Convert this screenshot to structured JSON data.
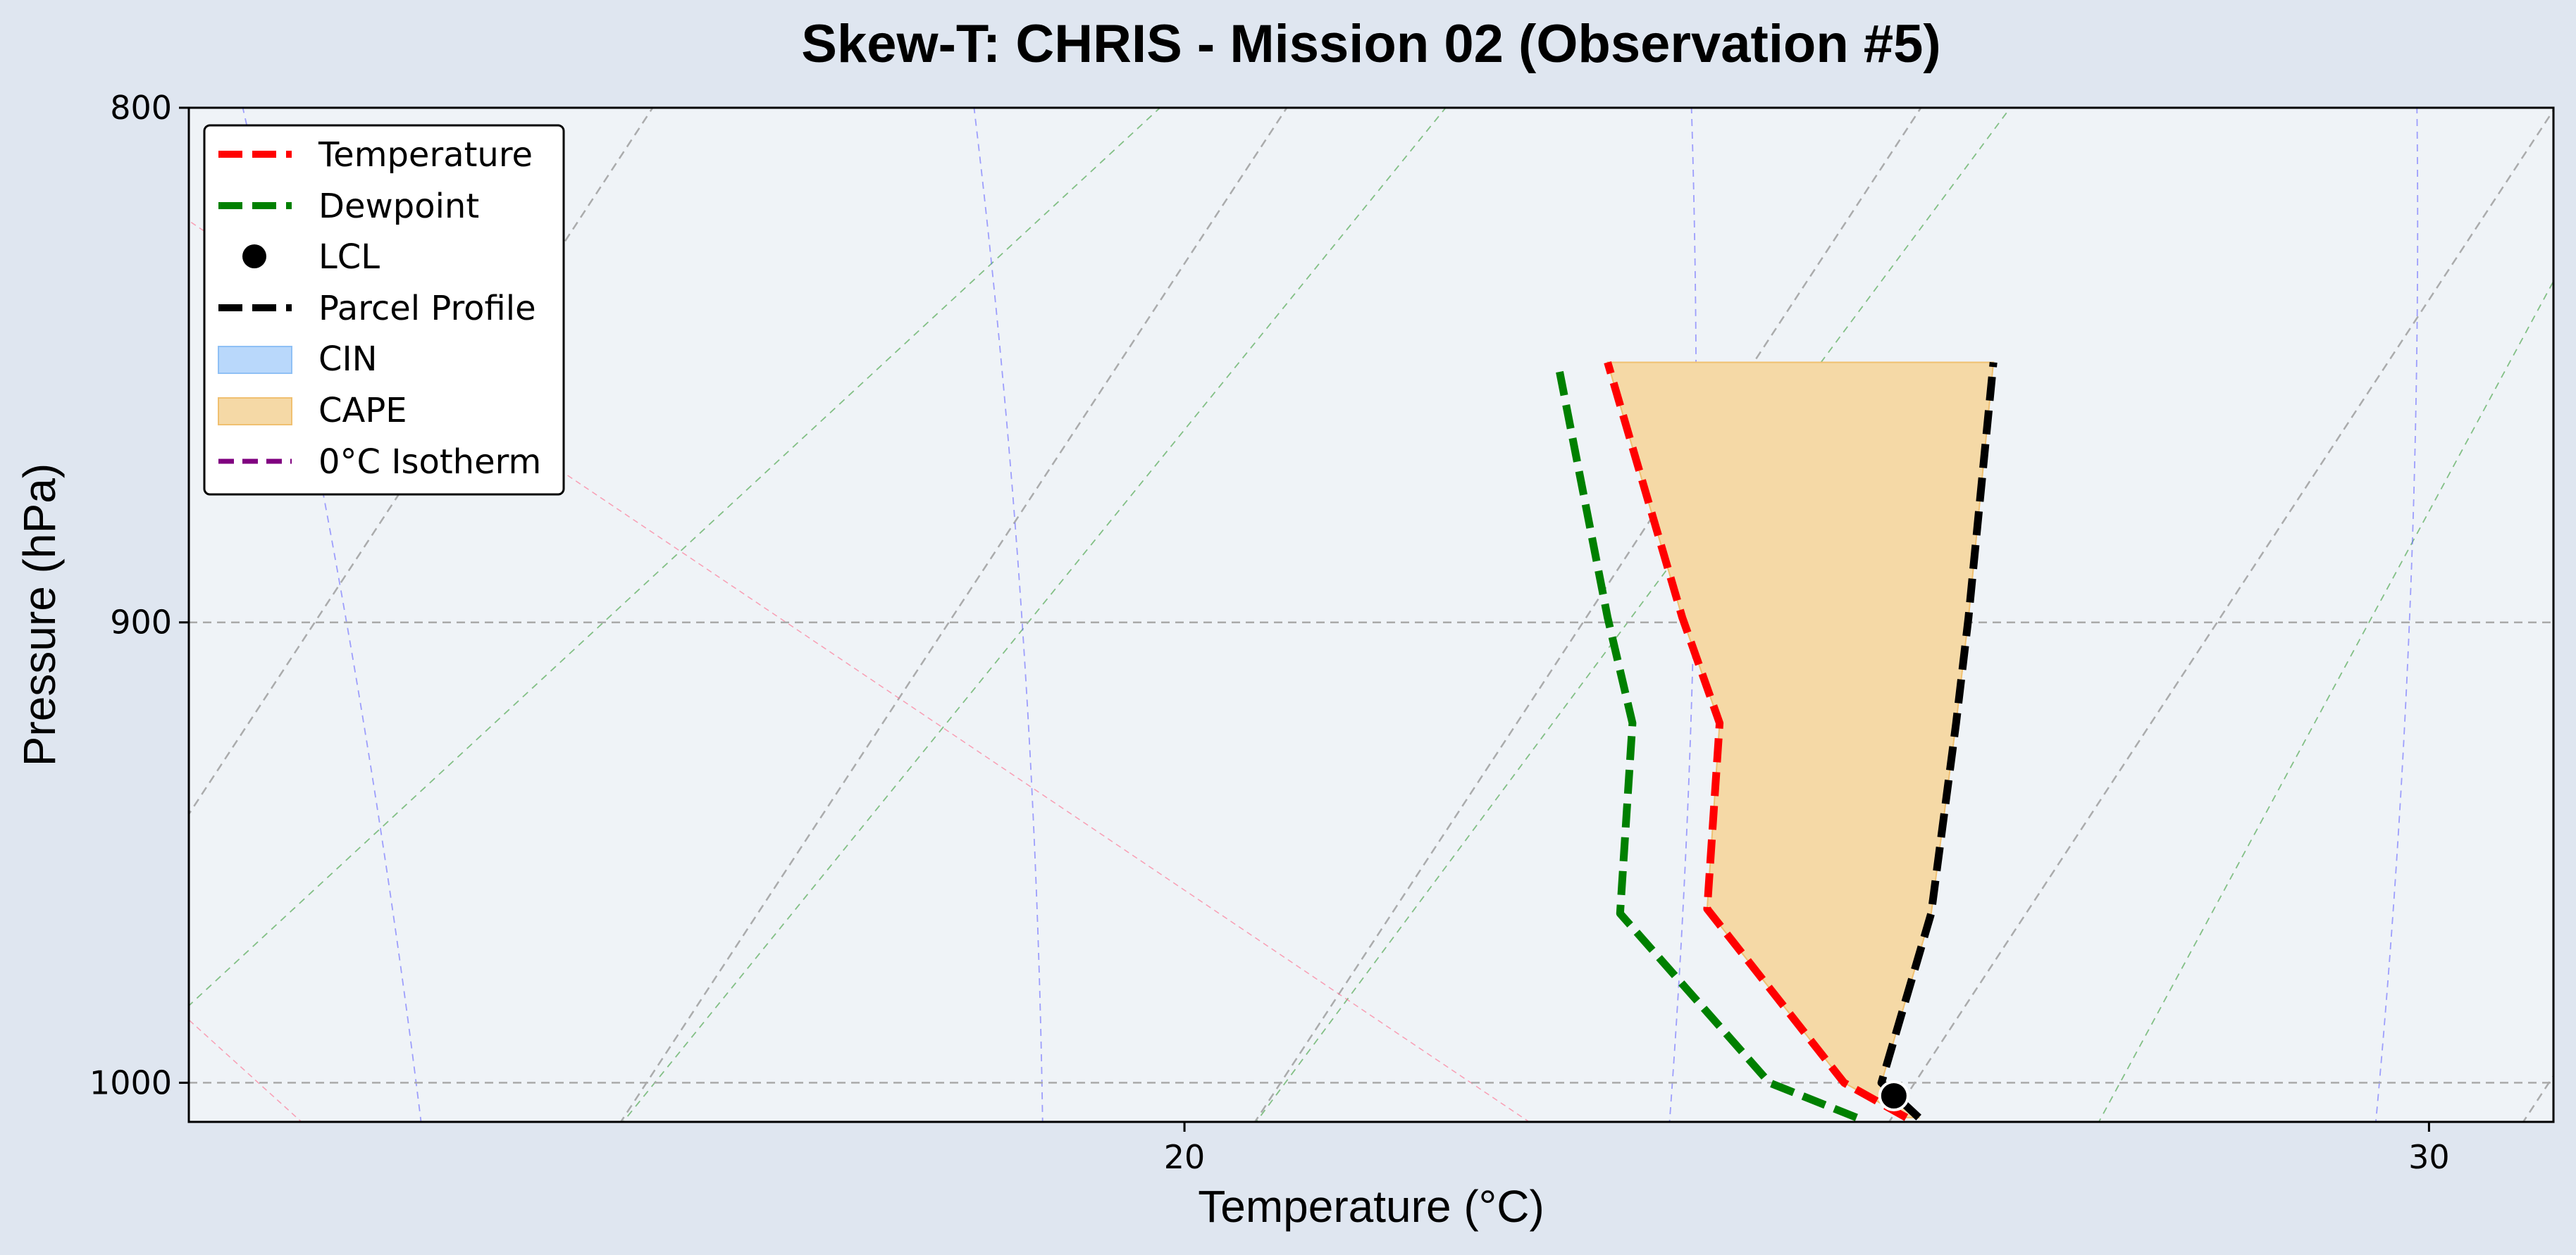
{
  "chart_data": {
    "type": "line",
    "title": "Skew-T: CHRIS - Mission 02 (Observation #5)",
    "xlabel": "Temperature (°C)",
    "ylabel": "Pressure (hPa)",
    "xlim": [
      12,
      31
    ],
    "ylim_pressure": [
      1009,
      800
    ],
    "y_scale": "log",
    "x_ticks": [
      20,
      30
    ],
    "y_ticks": [
      1000,
      900,
      800
    ],
    "grid": true,
    "legend_position": "upper-left",
    "series": [
      {
        "name": "Temperature",
        "color": "#ff0000",
        "style": "dashed",
        "points": [
          [
            25.8,
            1008
          ],
          [
            25.3,
            1000
          ],
          [
            24.2,
            961
          ],
          [
            24.3,
            921
          ],
          [
            24.0,
            899
          ],
          [
            23.4,
            848
          ]
        ]
      },
      {
        "name": "Dewpoint",
        "color": "#008000",
        "style": "dashed",
        "points": [
          [
            25.4,
            1008
          ],
          [
            24.7,
            1000
          ],
          [
            23.5,
            962
          ],
          [
            23.6,
            921
          ],
          [
            23.4,
            899
          ],
          [
            23.0,
            848
          ]
        ]
      },
      {
        "name": "Parcel Profile",
        "color": "#000000",
        "style": "dashed",
        "points": [
          [
            25.9,
            1008
          ],
          [
            25.6,
            1000
          ],
          [
            26.0,
            962
          ],
          [
            26.2,
            921
          ],
          [
            26.3,
            899
          ],
          [
            26.5,
            848
          ]
        ]
      }
    ],
    "lcl": {
      "name": "LCL",
      "temperature": 25.7,
      "pressure": 1003
    },
    "shaded_regions": [
      {
        "name": "CIN",
        "color": "#b9d8fb"
      },
      {
        "name": "CAPE",
        "color": "#f5d9a6"
      }
    ],
    "isotherm_0c": {
      "name": "0°C Isotherm",
      "color": "#800080"
    },
    "background_lines": {
      "dry_adiabats_color": "#ff6688",
      "moist_adiabats_color": "#6666ff",
      "mixing_ratio_color": "#55aa55",
      "isotherms_color": "#9a9a9a"
    }
  }
}
